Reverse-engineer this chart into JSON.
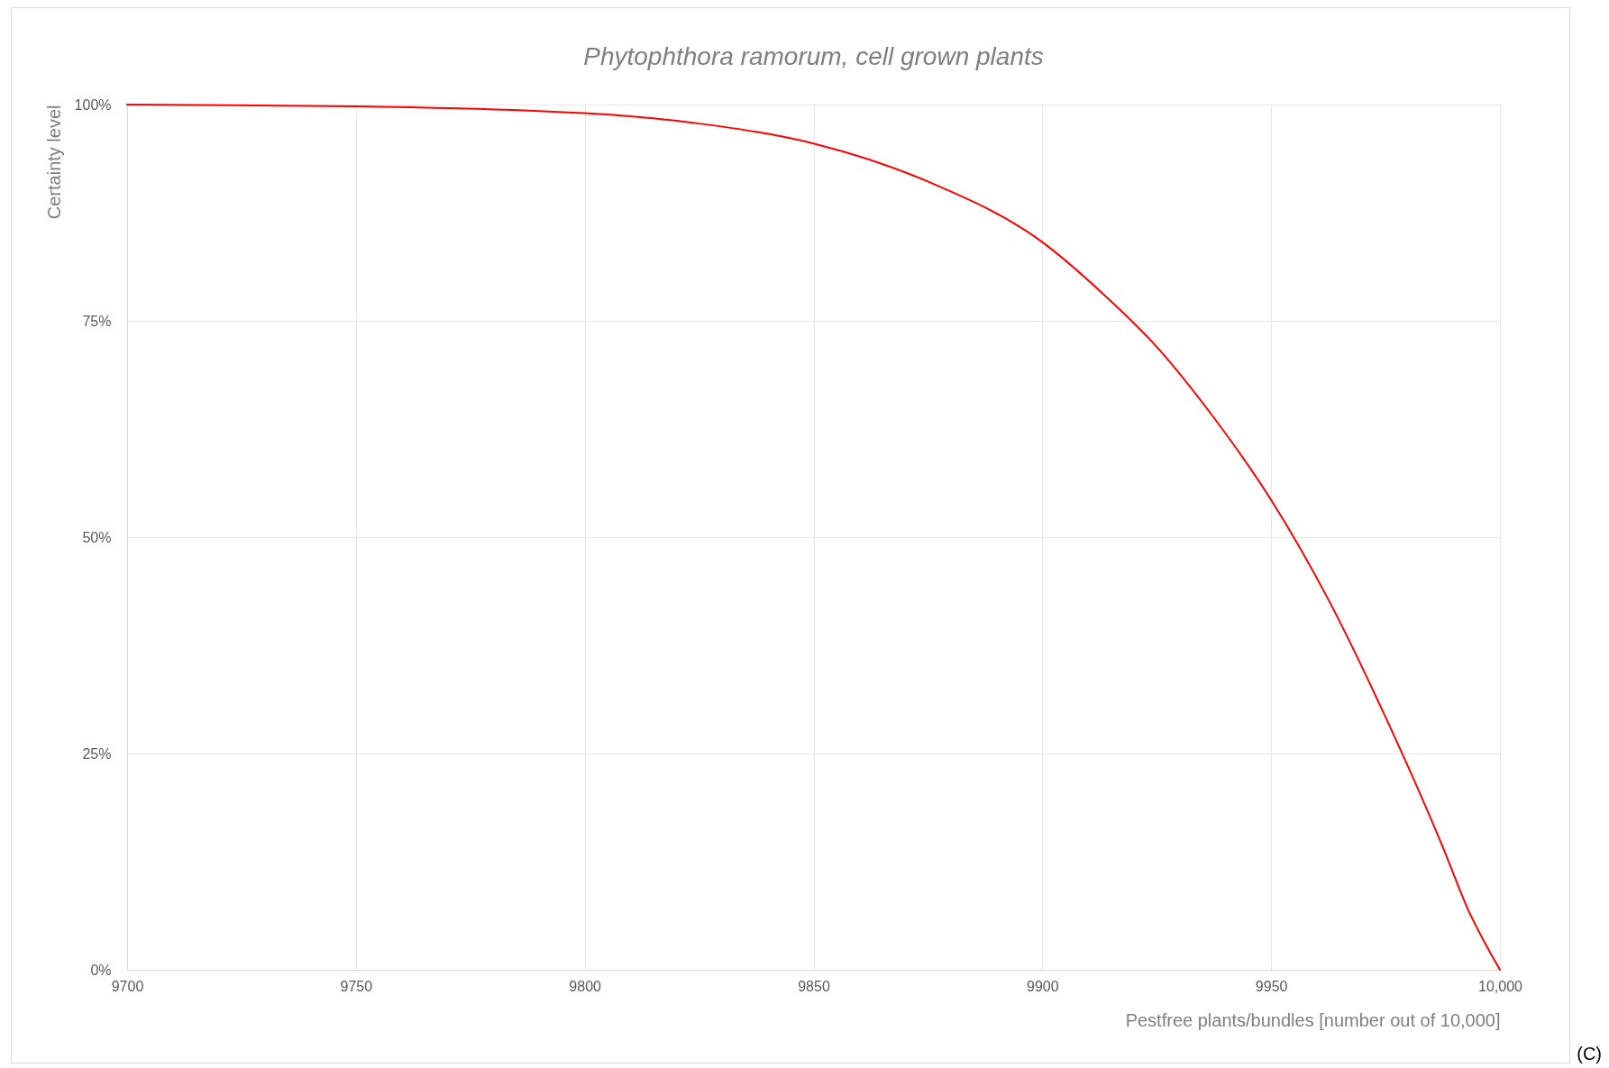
{
  "chart_data": {
    "type": "line",
    "title": "Phytophthora ramorum, cell grown plants",
    "xlabel": "Pestfree plants/bundles [number out of 10,000]",
    "ylabel": "Certainty level",
    "x": [
      9700,
      9750,
      9800,
      9825,
      9850,
      9875,
      9900,
      9912.5,
      9925,
      9937.5,
      9950,
      9962.5,
      9975,
      9987.5,
      9993,
      10000
    ],
    "series": [
      {
        "color": "#ff0000",
        "values": [
          100,
          99.8,
          99.0,
          97.8,
          95.5,
          91.1,
          84.1,
          78.5,
          72.0,
          63.8,
          54.3,
          42.8,
          29.2,
          14.2,
          7,
          0
        ]
      }
    ],
    "xlim": [
      9700,
      10000
    ],
    "xticks": [
      9700,
      9750,
      9800,
      9850,
      9900,
      9950,
      {
        "value": 10000,
        "label": "10,000"
      }
    ],
    "ylim": [
      0,
      100
    ],
    "yticks": [
      {
        "value": 0,
        "label": "0%"
      },
      {
        "value": 25,
        "label": "25%"
      },
      {
        "value": 50,
        "label": "50%"
      },
      {
        "value": 75,
        "label": "75%"
      },
      {
        "value": 100,
        "label": "100%"
      }
    ],
    "grid": true,
    "marker": "none",
    "line_style": "solid",
    "annotations": [
      "(C)"
    ]
  }
}
